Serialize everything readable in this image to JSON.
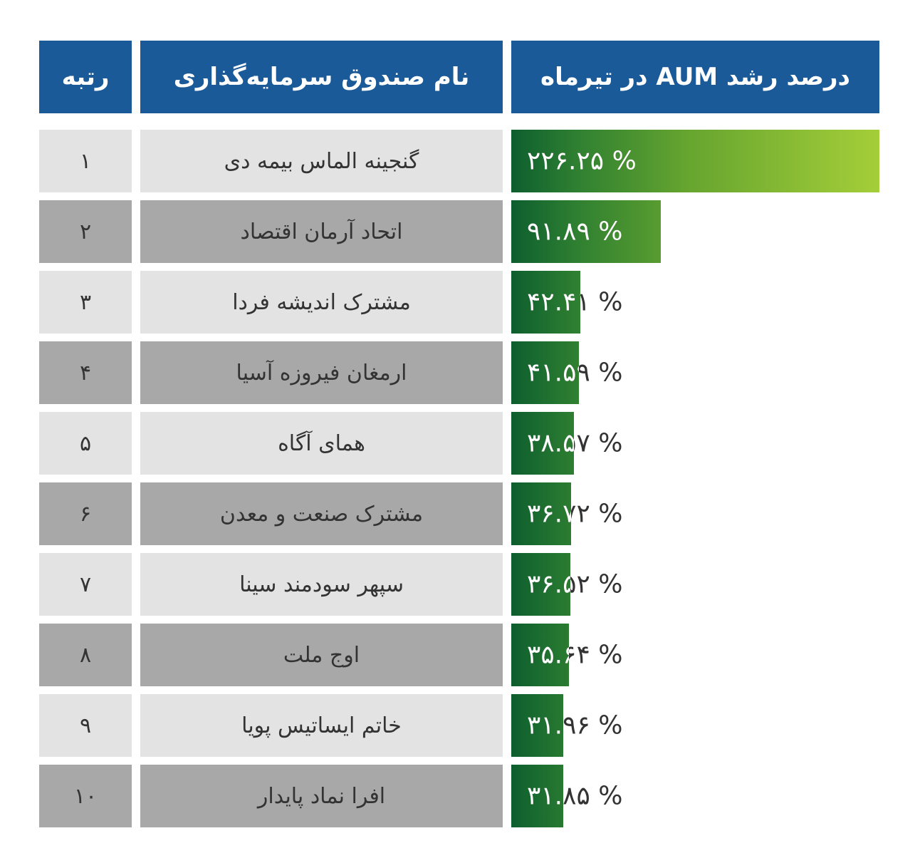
{
  "table": {
    "headers": {
      "rank": "رتبه",
      "fund_name": "نام صندوق سرمایه‌گذاری",
      "growth": "درصد رشد AUM در تیرماه"
    },
    "rows": [
      {
        "rank": "۱",
        "name": "گنجینه الماس بیمه دی",
        "value_label": "۲۲۶.۲۵ %"
      },
      {
        "rank": "۲",
        "name": "اتحاد آرمان اقتصاد",
        "value_label": "۹۱.۸۹ %"
      },
      {
        "rank": "۳",
        "name": "مشترک اندیشه فردا",
        "value_label": "۴۲.۴۱ %"
      },
      {
        "rank": "۴",
        "name": "ارمغان فیروزه آسیا",
        "value_label": "۴۱.۵۹ %"
      },
      {
        "rank": "۵",
        "name": "همای آگاه",
        "value_label": "۳۸.۵۷ %"
      },
      {
        "rank": "۶",
        "name": "مشترک صنعت و معدن",
        "value_label": "۳۶.۷۲ %"
      },
      {
        "rank": "۷",
        "name": "سپهر سودمند سینا",
        "value_label": "۳۶.۵۲ %"
      },
      {
        "rank": "۸",
        "name": "اوج ملت",
        "value_label": "۳۵.۶۴ %"
      },
      {
        "rank": "۹",
        "name": "خاتم ایساتیس پویا",
        "value_label": "۳۱.۹۶ %"
      },
      {
        "rank": "۱۰",
        "name": "افرا نماد پایدار",
        "value_label": "۳۱.۸۵ %"
      }
    ]
  },
  "chart_data": {
    "type": "bar",
    "orientation": "horizontal",
    "title": "درصد رشد AUM در تیرماه",
    "categories": [
      "گنجینه الماس بیمه دی",
      "اتحاد آرمان اقتصاد",
      "مشترک اندیشه فردا",
      "ارمغان فیروزه آسیا",
      "همای آگاه",
      "مشترک صنعت و معدن",
      "سپهر سودمند سینا",
      "اوج ملت",
      "خاتم ایساتیس پویا",
      "افرا نماد پایدار"
    ],
    "values": [
      226.25,
      91.89,
      42.41,
      41.59,
      38.57,
      36.72,
      36.52,
      35.64,
      31.96,
      31.85
    ],
    "value_labels": [
      "۲۲۶.۲۵ %",
      "۹۱.۸۹ %",
      "۴۲.۴۱ %",
      "۴۱.۵۹ %",
      "۳۸.۵۷ %",
      "۳۶.۷۲ %",
      "۳۶.۵۲ %",
      "۳۵.۶۴ %",
      "۳۱.۹۶ %",
      "۳۱.۸۵ %"
    ],
    "ranks": [
      "۱",
      "۲",
      "۳",
      "۴",
      "۵",
      "۶",
      "۷",
      "۸",
      "۹",
      "۱۰"
    ],
    "xlim": [
      0,
      226.25
    ],
    "unit": "%",
    "grid": false,
    "legend_position": "none"
  },
  "colors": {
    "header_bg": "#1a5a98",
    "header_text": "#ffffff",
    "row_light": "#e3e3e3",
    "row_dark": "#a8a8a8",
    "cell_text": "#333333",
    "bar_dark": "#0d5e2e",
    "bar_mid1": "#2f8031",
    "bar_mid2": "#66a52f",
    "bar_light": "#a5ce39",
    "label_on_bar": "#ffffff",
    "label_off_bar": "#333333"
  }
}
